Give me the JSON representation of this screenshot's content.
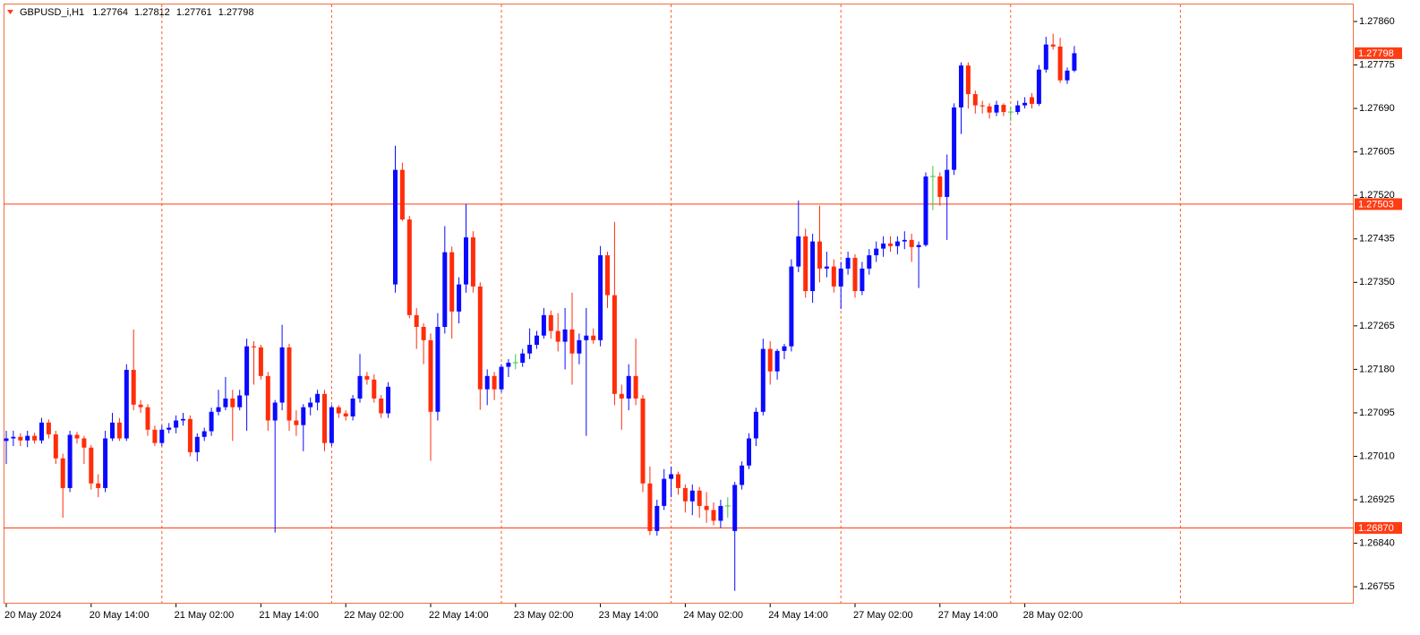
{
  "chart_data": {
    "type": "candlestick",
    "title": "GBPUSD_i,H1",
    "categories": [
      "20 May 2024",
      null,
      null,
      null,
      null,
      null,
      null,
      null,
      null,
      null,
      null,
      null,
      "20 May 14:00",
      null,
      null,
      null,
      null,
      null,
      null,
      null,
      null,
      null,
      null,
      null,
      "21 May 02:00",
      null,
      null,
      null,
      null,
      null,
      null,
      null,
      null,
      null,
      null,
      null,
      "21 May 14:00",
      null,
      null,
      null,
      null,
      null,
      null,
      null,
      null,
      null,
      null,
      null,
      "22 May 02:00",
      null,
      null,
      null,
      null,
      null,
      null,
      null,
      null,
      null,
      null,
      null,
      "22 May 14:00",
      null,
      null,
      null,
      null,
      null,
      null,
      null,
      null,
      null,
      null,
      null,
      "23 May 02:00",
      null,
      null,
      null,
      null,
      null,
      null,
      null,
      null,
      null,
      null,
      null,
      "23 May 14:00",
      null,
      null,
      null,
      null,
      null,
      null,
      null,
      null,
      null,
      null,
      null,
      "24 May 02:00",
      null,
      null,
      null,
      null,
      null,
      null,
      null,
      null,
      null,
      null,
      null,
      "24 May 14:00",
      null,
      null,
      null,
      null,
      null,
      null,
      null,
      null,
      null,
      null,
      null,
      "27 May 02:00",
      null,
      null,
      null,
      null,
      null,
      null,
      null,
      null,
      null,
      null,
      null,
      "27 May 14:00",
      null,
      null,
      null,
      null,
      null,
      null,
      null,
      null,
      null,
      null,
      null,
      "28 May 02:00",
      null,
      null,
      null,
      null,
      null,
      null,
      null
    ],
    "open": [
      1.2704,
      1.27045,
      1.27048,
      1.27041,
      1.2705,
      1.27041,
      1.27076,
      1.27053,
      1.27006,
      1.26948,
      1.27052,
      1.27045,
      1.27027,
      1.26957,
      1.26948,
      1.27045,
      1.27076,
      1.27045,
      1.27179,
      1.27111,
      1.27106,
      1.27062,
      1.27036,
      1.27062,
      1.27066,
      1.2708,
      1.27083,
      1.27018,
      1.27048,
      1.27059,
      1.27097,
      1.27106,
      1.27123,
      1.27106,
      1.27129,
      1.27225,
      1.27223,
      1.27167,
      1.2708,
      1.27115,
      1.27223,
      1.2708,
      1.27071,
      1.27106,
      1.27115,
      1.27132,
      1.27036,
      1.27106,
      1.27094,
      1.27088,
      1.27123,
      1.27167,
      1.2716,
      1.27123,
      1.27094,
      1.27346,
      1.2757,
      1.27473,
      1.27286,
      1.27263,
      1.27237,
      1.27097,
      1.27263,
      1.27409,
      1.27293,
      1.27346,
      1.27438,
      1.27342,
      1.27141,
      1.27167,
      1.27141,
      1.27185,
      1.27193,
      1.27193,
      1.27211,
      1.27228,
      1.27246,
      1.27286,
      1.27255,
      1.27234,
      1.27258,
      1.27211,
      1.27237,
      1.27246,
      1.27237,
      1.27403,
      1.27325,
      1.27132,
      1.27123,
      1.27167,
      1.27123,
      1.26957,
      1.26864,
      1.26913,
      1.26966,
      1.26975,
      1.26948,
      1.26922,
      1.26943,
      1.26913,
      1.26905,
      1.26884,
      1.26913,
      1.26864,
      1.26954,
      1.26992,
      1.27045,
      1.27097,
      1.2722,
      1.27176,
      1.27216,
      1.27225,
      1.27381,
      1.2744,
      1.27333,
      1.2743,
      1.27377,
      1.27381,
      1.27342,
      1.27377,
      1.27398,
      1.27333,
      1.27377,
      1.27403,
      1.27416,
      1.27426,
      1.27421,
      1.2743,
      1.27433,
      1.27419,
      1.27423,
      1.27557,
      1.27557,
      1.27517,
      1.2757,
      1.27692,
      1.27774,
      1.27718,
      1.27696,
      1.27694,
      1.27682,
      1.27697,
      1.27683,
      1.27683,
      1.27696,
      1.27712,
      1.27699,
      1.27766,
      1.27815,
      1.27811,
      1.27745,
      1.27764
    ],
    "high": [
      1.2706,
      1.2706,
      1.27055,
      1.2706,
      1.27056,
      1.27085,
      1.27082,
      1.2706,
      1.27015,
      1.2706,
      1.27058,
      1.2705,
      1.27032,
      1.26975,
      1.2706,
      1.27095,
      1.27085,
      1.2719,
      1.27258,
      1.2712,
      1.27112,
      1.2707,
      1.2707,
      1.27075,
      1.2709,
      1.27095,
      1.2709,
      1.27055,
      1.27066,
      1.27105,
      1.2714,
      1.27165,
      1.2714,
      1.2714,
      1.2724,
      1.27235,
      1.27228,
      1.27175,
      1.2712,
      1.27267,
      1.2723,
      1.271,
      1.27112,
      1.27125,
      1.2714,
      1.2714,
      1.2711,
      1.2711,
      1.271,
      1.2713,
      1.2721,
      1.27175,
      1.2717,
      1.2713,
      1.27155,
      1.27617,
      1.27584,
      1.2748,
      1.273,
      1.2727,
      1.2725,
      1.2729,
      1.2746,
      1.2742,
      1.2736,
      1.27503,
      1.2745,
      1.2735,
      1.2718,
      1.27175,
      1.2719,
      1.272,
      1.2721,
      1.2722,
      1.2726,
      1.27255,
      1.273,
      1.27295,
      1.2729,
      1.273,
      1.2733,
      1.2725,
      1.273,
      1.2726,
      1.27421,
      1.2741,
      1.27468,
      1.2715,
      1.2719,
      1.2724,
      1.2713,
      1.2699,
      1.26925,
      1.26985,
      1.2699,
      1.2698,
      1.26955,
      1.26955,
      1.2695,
      1.2694,
      1.2692,
      1.26925,
      1.2693,
      1.2696,
      1.27,
      1.27055,
      1.27105,
      1.2724,
      1.27235,
      1.2722,
      1.2723,
      1.27395,
      1.2751,
      1.27455,
      1.27445,
      1.275,
      1.2741,
      1.27395,
      1.2739,
      1.2741,
      1.27405,
      1.2739,
      1.27415,
      1.2743,
      1.2744,
      1.2744,
      1.2744,
      1.2745,
      1.27445,
      1.2743,
      1.27565,
      1.27578,
      1.27565,
      1.276,
      1.277,
      1.2778,
      1.2778,
      1.27725,
      1.27705,
      1.277,
      1.27705,
      1.277,
      1.27692,
      1.27705,
      1.27712,
      1.2772,
      1.27775,
      1.2783,
      1.27836,
      1.27828,
      1.2777,
      1.27812
    ],
    "low": [
      1.26995,
      1.2703,
      1.2703,
      1.27028,
      1.27035,
      1.27035,
      1.27045,
      1.26995,
      1.2689,
      1.2694,
      1.27035,
      1.26995,
      1.26945,
      1.2693,
      1.2694,
      1.2704,
      1.2704,
      1.2704,
      1.271,
      1.27095,
      1.2705,
      1.2703,
      1.2703,
      1.27055,
      1.27055,
      1.2707,
      1.2701,
      1.27,
      1.2704,
      1.2705,
      1.2709,
      1.271,
      1.2704,
      1.271,
      1.2706,
      1.2715,
      1.2716,
      1.2706,
      1.26861,
      1.271,
      1.2706,
      1.2705,
      1.2702,
      1.2709,
      1.271,
      1.2702,
      1.2703,
      1.27085,
      1.2708,
      1.2708,
      1.27115,
      1.2715,
      1.27115,
      1.27085,
      1.27085,
      1.2733,
      1.2747,
      1.2728,
      1.2722,
      1.2719,
      1.27001,
      1.2708,
      1.2725,
      1.2724,
      1.2727,
      1.2733,
      1.2733,
      1.27101,
      1.2711,
      1.2712,
      1.27135,
      1.27165,
      1.2718,
      1.27185,
      1.272,
      1.2722,
      1.2724,
      1.2724,
      1.27215,
      1.2718,
      1.2715,
      1.2719,
      1.2705,
      1.2723,
      1.27225,
      1.273,
      1.2711,
      1.27062,
      1.271,
      1.2711,
      1.2694,
      1.26856,
      1.26855,
      1.26905,
      1.2693,
      1.26935,
      1.269,
      1.26895,
      1.2689,
      1.2688,
      1.26875,
      1.2687,
      1.2689,
      1.26747,
      1.26945,
      1.26985,
      1.2703,
      1.2709,
      1.2715,
      1.2716,
      1.272,
      1.27215,
      1.2737,
      1.2732,
      1.2731,
      1.2735,
      1.2736,
      1.2733,
      1.27298,
      1.27365,
      1.2732,
      1.27325,
      1.27365,
      1.2739,
      1.274,
      1.2741,
      1.27405,
      1.27415,
      1.2739,
      1.27339,
      1.2742,
      1.27491,
      1.275,
      1.27433,
      1.2756,
      1.2764,
      1.2769,
      1.2768,
      1.2768,
      1.2767,
      1.27675,
      1.27675,
      1.27665,
      1.27678,
      1.2769,
      1.2769,
      1.27695,
      1.2776,
      1.27805,
      1.2774,
      1.27738,
      1.27761
    ],
    "close": [
      1.27045,
      1.27048,
      1.27041,
      1.2705,
      1.27041,
      1.27076,
      1.27053,
      1.27006,
      1.26948,
      1.27052,
      1.27045,
      1.27027,
      1.26957,
      1.26948,
      1.27045,
      1.27076,
      1.27045,
      1.27179,
      1.27111,
      1.27106,
      1.27062,
      1.27036,
      1.27062,
      1.27066,
      1.2708,
      1.27083,
      1.27018,
      1.27048,
      1.27059,
      1.27097,
      1.27106,
      1.27123,
      1.27106,
      1.27129,
      1.27225,
      1.27223,
      1.27167,
      1.2708,
      1.27115,
      1.27223,
      1.2708,
      1.27071,
      1.27106,
      1.27115,
      1.27132,
      1.27036,
      1.27106,
      1.27094,
      1.27088,
      1.27123,
      1.27167,
      1.2716,
      1.27123,
      1.27094,
      1.27146,
      1.2757,
      1.27473,
      1.27286,
      1.27263,
      1.27237,
      1.27097,
      1.27263,
      1.27409,
      1.27293,
      1.27346,
      1.27438,
      1.27342,
      1.27141,
      1.27167,
      1.27141,
      1.27185,
      1.27193,
      1.27193,
      1.27211,
      1.27228,
      1.27246,
      1.27286,
      1.27255,
      1.27234,
      1.27258,
      1.27211,
      1.27237,
      1.27246,
      1.27237,
      1.27403,
      1.27325,
      1.27132,
      1.27123,
      1.27167,
      1.27123,
      1.26957,
      1.26864,
      1.26913,
      1.26966,
      1.26975,
      1.26948,
      1.26922,
      1.26943,
      1.26913,
      1.26905,
      1.26884,
      1.26913,
      1.26913,
      1.26954,
      1.26992,
      1.27045,
      1.27097,
      1.2722,
      1.27176,
      1.27216,
      1.27225,
      1.27381,
      1.2744,
      1.27333,
      1.2743,
      1.27377,
      1.27381,
      1.27342,
      1.27377,
      1.27398,
      1.27333,
      1.27377,
      1.27403,
      1.27416,
      1.27426,
      1.27421,
      1.2743,
      1.27433,
      1.27419,
      1.27423,
      1.27557,
      1.27557,
      1.27517,
      1.2757,
      1.27692,
      1.27774,
      1.27718,
      1.27696,
      1.27694,
      1.27682,
      1.27697,
      1.27683,
      1.27683,
      1.27696,
      1.27701,
      1.27699,
      1.27766,
      1.27815,
      1.27811,
      1.27745,
      1.27764,
      1.27798
    ],
    "up_color": "#0a0aff",
    "down_color": "#ff2d0a",
    "doji_color": "#3cc83c",
    "ylim": [
      1.26722,
      1.27895
    ],
    "yticks": [
      {
        "value": 1.2786,
        "label": "1.27860"
      },
      1.27775,
      {
        "value": 1.2769,
        "label": "1.27690"
      },
      1.27605,
      {
        "value": 1.2752,
        "label": "1.27520"
      },
      1.27435,
      {
        "value": 1.2735,
        "label": "1.27350"
      },
      1.27265,
      {
        "value": 1.2718,
        "label": "1.27180"
      },
      1.27095,
      {
        "value": 1.2701,
        "label": "1.27010"
      },
      1.26925,
      {
        "value": 1.2684,
        "label": "1.26840"
      },
      1.26755
    ],
    "grid": false,
    "period_separators": [
      22,
      46,
      70,
      94,
      118,
      142,
      166
    ],
    "separator_color": "#ff5a1e",
    "hlines": [
      1.27503,
      {
        "value": 1.2687,
        "label": "1.26870"
      }
    ],
    "hline_color": "#ff3c14",
    "price_label_color": "#ff3c14"
  }
}
